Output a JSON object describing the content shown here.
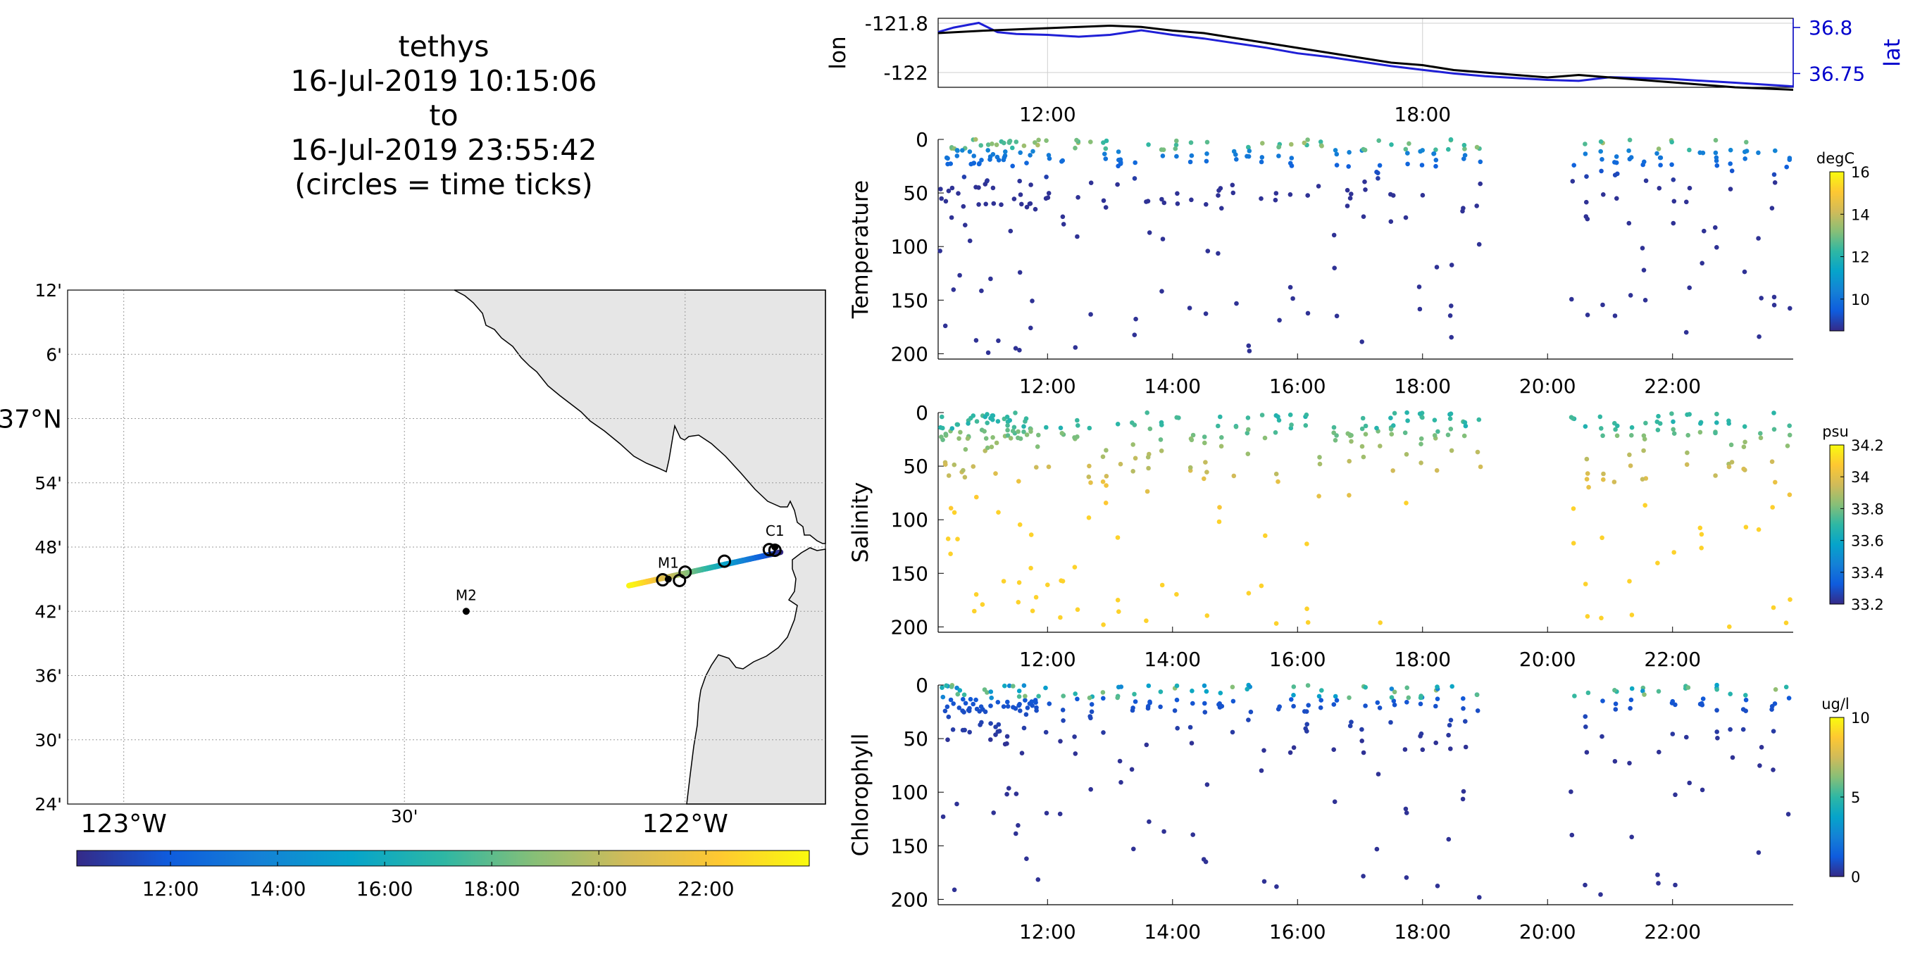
{
  "title": {
    "lines": [
      "tethys",
      "16-Jul-2019 10:15:06",
      "to",
      "16-Jul-2019 23:55:42",
      "(circles = time ticks)"
    ]
  },
  "colors": {
    "land": "#e6e6e6",
    "lat_axis": "#0000cc",
    "lon_line": "#000000",
    "lat_line": "#1f1fd6",
    "parula": [
      "#352a87",
      "#0f5cdd",
      "#1481d6",
      "#06a4ca",
      "#2eb7a4",
      "#87bf77",
      "#d1bb59",
      "#fec832",
      "#f9fb0e"
    ]
  },
  "map": {
    "lat_ticks": [
      "12'",
      "6'",
      "37°N",
      "54'",
      "48'",
      "42'",
      "36'",
      "30'",
      "24'"
    ],
    "lon_ticks": [
      "123°W",
      "30'",
      "122°W"
    ],
    "lat_range": [
      36.4,
      37.2
    ],
    "lon_range": [
      -123.1,
      -121.75
    ],
    "stations": [
      {
        "name": "M2",
        "lon": -122.39,
        "lat": 36.7
      },
      {
        "name": "M1",
        "lon": -122.03,
        "lat": 36.75
      },
      {
        "name": "C1",
        "lon": -121.84,
        "lat": 36.8
      }
    ],
    "time_ticks": [
      {
        "lon": -121.84,
        "lat": 36.795
      },
      {
        "lon": -121.85,
        "lat": 36.796
      },
      {
        "lon": -121.93,
        "lat": 36.778
      },
      {
        "lon": -122.0,
        "lat": 36.761
      },
      {
        "lon": -122.01,
        "lat": 36.748
      },
      {
        "lon": -122.04,
        "lat": 36.749
      }
    ],
    "track_start": {
      "lon": -121.83,
      "lat": 36.792
    },
    "track_end": {
      "lon": -122.1,
      "lat": 36.74
    }
  },
  "colorbar": {
    "ticks": [
      "12:00",
      "14:00",
      "16:00",
      "18:00",
      "20:00",
      "22:00"
    ],
    "range_hours": [
      10.25,
      23.93
    ]
  },
  "lonlat": {
    "ylabel_left": "lon",
    "ylabel_right": "lat",
    "left_ticks": [
      "-121.8",
      "-122"
    ],
    "right_ticks": [
      "36.8",
      "36.75"
    ],
    "lon_range": [
      -122.06,
      -121.78
    ],
    "lat_range": [
      36.735,
      36.81
    ],
    "x_ticks": [
      "12:00",
      "18:00"
    ],
    "lon_series": [
      [
        10.25,
        -121.84
      ],
      [
        11.0,
        -121.83
      ],
      [
        12.0,
        -121.82
      ],
      [
        12.5,
        -121.815
      ],
      [
        13.0,
        -121.81
      ],
      [
        13.5,
        -121.815
      ],
      [
        14.0,
        -121.83
      ],
      [
        14.5,
        -121.84
      ],
      [
        15.0,
        -121.86
      ],
      [
        15.5,
        -121.88
      ],
      [
        16.0,
        -121.9
      ],
      [
        16.5,
        -121.92
      ],
      [
        17.0,
        -121.94
      ],
      [
        17.5,
        -121.96
      ],
      [
        18.0,
        -121.97
      ],
      [
        18.5,
        -121.99
      ],
      [
        19.0,
        -122.0
      ],
      [
        19.5,
        -122.01
      ],
      [
        20.0,
        -122.02
      ],
      [
        20.5,
        -122.01
      ],
      [
        21.0,
        -122.02
      ],
      [
        21.5,
        -122.03
      ],
      [
        22.0,
        -122.04
      ],
      [
        22.5,
        -122.05
      ],
      [
        23.0,
        -122.06
      ],
      [
        23.93,
        -122.07
      ]
    ],
    "lat_series": [
      [
        10.25,
        36.795
      ],
      [
        10.5,
        36.8
      ],
      [
        10.9,
        36.805
      ],
      [
        11.2,
        36.795
      ],
      [
        11.5,
        36.793
      ],
      [
        12.0,
        36.792
      ],
      [
        12.5,
        36.79
      ],
      [
        13.0,
        36.792
      ],
      [
        13.5,
        36.797
      ],
      [
        14.0,
        36.792
      ],
      [
        14.5,
        36.788
      ],
      [
        15.0,
        36.783
      ],
      [
        15.5,
        36.778
      ],
      [
        16.0,
        36.772
      ],
      [
        16.5,
        36.768
      ],
      [
        17.0,
        36.763
      ],
      [
        17.5,
        36.758
      ],
      [
        18.0,
        36.754
      ],
      [
        18.5,
        36.75
      ],
      [
        19.0,
        36.747
      ],
      [
        19.5,
        36.745
      ],
      [
        20.0,
        36.743
      ],
      [
        20.5,
        36.742
      ],
      [
        21.0,
        36.746
      ],
      [
        21.5,
        36.745
      ],
      [
        22.0,
        36.744
      ],
      [
        22.5,
        36.742
      ],
      [
        23.0,
        36.74
      ],
      [
        23.93,
        36.736
      ]
    ]
  },
  "chart_data": [
    {
      "type": "scatter",
      "ylabel": "Temperature",
      "units": "degC",
      "clim": [
        8.5,
        16
      ],
      "cbar_ticks": [
        "10",
        "12",
        "14",
        "16"
      ],
      "y_ticks": [
        "0",
        "50",
        "100",
        "150",
        "200"
      ],
      "ylim": [
        205,
        0
      ],
      "x_ticks": [
        "12:00",
        "14:00",
        "16:00",
        "18:00",
        "20:00",
        "22:00"
      ],
      "xlim": [
        10.25,
        23.93
      ]
    },
    {
      "type": "scatter",
      "ylabel": "Salinity",
      "units": "psu",
      "clim": [
        33.2,
        34.2
      ],
      "cbar_ticks": [
        "33.2",
        "33.4",
        "33.6",
        "33.8",
        "34",
        "34.2"
      ],
      "y_ticks": [
        "0",
        "50",
        "100",
        "150",
        "200"
      ],
      "ylim": [
        205,
        0
      ],
      "x_ticks": [
        "12:00",
        "14:00",
        "16:00",
        "18:00",
        "20:00",
        "22:00"
      ],
      "xlim": [
        10.25,
        23.93
      ]
    },
    {
      "type": "scatter",
      "ylabel": "Chlorophyll",
      "units": "ug/l",
      "clim": [
        0,
        10
      ],
      "cbar_ticks": [
        "0",
        "5",
        "10"
      ],
      "y_ticks": [
        "0",
        "50",
        "100",
        "150",
        "200"
      ],
      "ylim": [
        205,
        0
      ],
      "x_ticks": [
        "12:00",
        "14:00",
        "16:00",
        "18:00",
        "20:00",
        "22:00"
      ],
      "xlim": [
        10.25,
        23.93
      ]
    }
  ]
}
